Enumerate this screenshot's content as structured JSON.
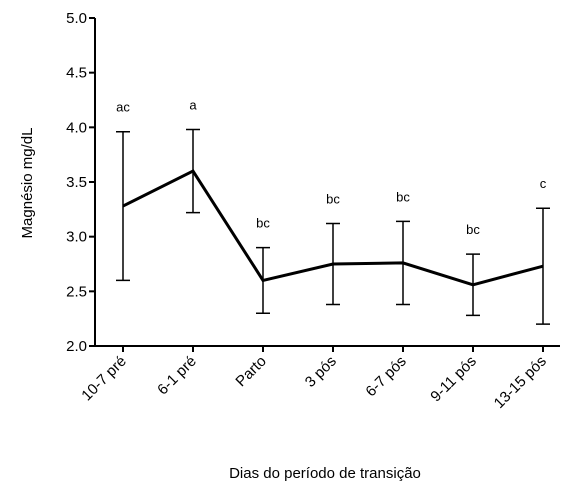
{
  "chart_data": {
    "type": "line",
    "x_label": "Dias do período de transição",
    "y_label": "Magnésio mg/dL",
    "categories": [
      "10-7 pré",
      "6-1 pré",
      "Parto",
      "3 pós",
      "6-7 pós",
      "9-11 pós",
      "13-15 pós"
    ],
    "series": [
      {
        "color": "#000000",
        "values": [
          3.28,
          3.6,
          2.6,
          2.75,
          2.76,
          2.56,
          2.73
        ],
        "errors": [
          0.68,
          0.38,
          0.3,
          0.37,
          0.38,
          0.28,
          0.53
        ]
      }
    ],
    "annotations": [
      "ac",
      "a",
      "bc",
      "bc",
      "bc",
      "bc",
      "c"
    ],
    "ylim": [
      2.0,
      5.0
    ],
    "yticks": [
      {
        "value": 2.0,
        "label": "2.0"
      },
      {
        "value": 2.5,
        "label": "2.5"
      },
      {
        "value": 3.0,
        "label": "3.0"
      },
      {
        "value": 3.5,
        "label": "3.5"
      },
      {
        "value": 4.0,
        "label": "4.0"
      },
      {
        "value": 4.5,
        "label": "4.5"
      },
      {
        "value": 5.0,
        "label": "5.0"
      }
    ]
  }
}
